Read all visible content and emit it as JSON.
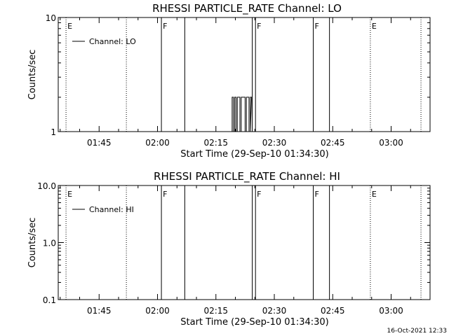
{
  "footer": {
    "timestamp": "16-Oct-2021 12:33"
  },
  "chart_data": [
    {
      "type": "line",
      "title": "RHESSI PARTICLE_RATE Channel: LO",
      "xlabel": "Start Time (29-Sep-10 01:34:30)",
      "ylabel": "Counts/sec",
      "xlim": [
        "01:34:30",
        "03:10:00"
      ],
      "ylim": [
        1,
        10
      ],
      "yscale": "log",
      "x_ticks": [
        "01:45",
        "02:00",
        "02:15",
        "02:30",
        "02:45",
        "03:00"
      ],
      "y_ticks": [
        {
          "value": 1,
          "label": "1"
        },
        {
          "value": 10,
          "label": "10"
        }
      ],
      "legend": {
        "position": "top-left",
        "entries": [
          "Channel: LO"
        ]
      },
      "series": [
        {
          "name": "Channel: LO",
          "x": [
            "02:18:50",
            "02:19:10",
            "02:19:30",
            "02:19:50",
            "02:20:10",
            "02:20:30",
            "02:20:50",
            "02:21:10",
            "02:21:30",
            "02:21:50",
            "02:22:10",
            "02:22:30",
            "02:22:50",
            "02:23:10",
            "02:23:30",
            "02:23:50"
          ],
          "y": [
            1,
            2,
            1,
            2,
            1,
            2,
            2,
            1,
            2,
            2,
            2,
            1,
            2,
            2,
            1,
            2
          ]
        }
      ],
      "markers": [
        {
          "time": "01:36:30",
          "label": "E",
          "style": "dotted"
        },
        {
          "time": "01:52:00",
          "label": "",
          "style": "dotted"
        },
        {
          "time": "02:01:00",
          "label": "F",
          "style": "solid"
        },
        {
          "time": "02:07:00",
          "label": "",
          "style": "solid"
        },
        {
          "time": "02:24:20",
          "label": "",
          "style": "solid"
        },
        {
          "time": "02:25:10",
          "label": "F",
          "style": "solid"
        },
        {
          "time": "02:40:00",
          "label": "F",
          "style": "solid"
        },
        {
          "time": "02:44:10",
          "label": "",
          "style": "solid"
        },
        {
          "time": "02:54:40",
          "label": "E",
          "style": "dotted"
        },
        {
          "time": "03:07:40",
          "label": "",
          "style": "dotted"
        }
      ]
    },
    {
      "type": "line",
      "title": "RHESSI PARTICLE_RATE Channel: HI",
      "xlabel": "Start Time (29-Sep-10 01:34:30)",
      "ylabel": "Counts/sec",
      "xlim": [
        "01:34:30",
        "03:10:00"
      ],
      "ylim": [
        0.1,
        10
      ],
      "yscale": "log",
      "x_ticks": [
        "01:45",
        "02:00",
        "02:15",
        "02:30",
        "02:45",
        "03:00"
      ],
      "y_ticks": [
        {
          "value": 0.1,
          "label": "0.1"
        },
        {
          "value": 1,
          "label": "1.0"
        },
        {
          "value": 10,
          "label": "10.0"
        }
      ],
      "legend": {
        "position": "top-left",
        "entries": [
          "Channel: HI"
        ]
      },
      "series": [
        {
          "name": "Channel: HI",
          "x": [],
          "y": []
        }
      ],
      "markers": [
        {
          "time": "01:36:30",
          "label": "E",
          "style": "dotted"
        },
        {
          "time": "01:52:00",
          "label": "",
          "style": "dotted"
        },
        {
          "time": "02:01:00",
          "label": "F",
          "style": "solid"
        },
        {
          "time": "02:07:00",
          "label": "",
          "style": "solid"
        },
        {
          "time": "02:24:20",
          "label": "",
          "style": "solid"
        },
        {
          "time": "02:25:10",
          "label": "F",
          "style": "solid"
        },
        {
          "time": "02:40:00",
          "label": "F",
          "style": "solid"
        },
        {
          "time": "02:44:10",
          "label": "",
          "style": "solid"
        },
        {
          "time": "02:54:40",
          "label": "E",
          "style": "dotted"
        },
        {
          "time": "03:07:40",
          "label": "",
          "style": "dotted"
        }
      ]
    }
  ]
}
